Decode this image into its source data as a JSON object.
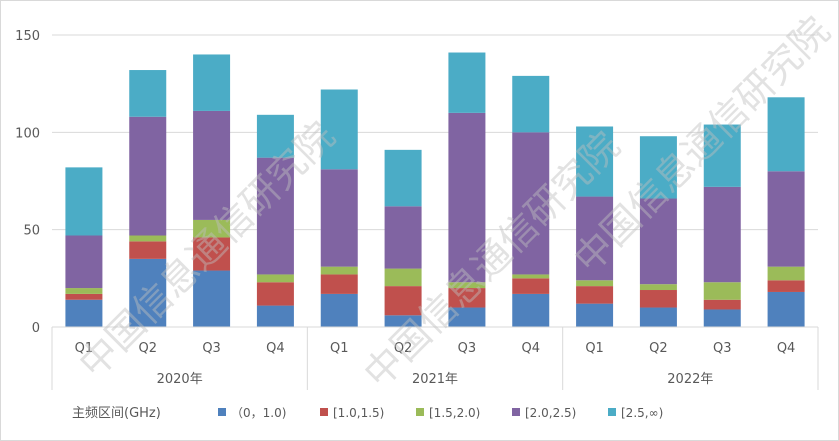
{
  "chart_data": {
    "type": "bar",
    "stacked": true,
    "categories": [
      "Q1",
      "Q2",
      "Q3",
      "Q4",
      "Q1",
      "Q2",
      "Q3",
      "Q4",
      "Q1",
      "Q2",
      "Q3",
      "Q4"
    ],
    "groups": [
      {
        "label": "2020年",
        "start": 0,
        "end": 3
      },
      {
        "label": "2021年",
        "start": 4,
        "end": 7
      },
      {
        "label": "2022年",
        "start": 8,
        "end": 11
      }
    ],
    "series": [
      {
        "name": "（0，1.0)",
        "color": "#4f81bd",
        "values": [
          14,
          35,
          29,
          11,
          17,
          6,
          10,
          17,
          12,
          10,
          9,
          18
        ]
      },
      {
        "name": "[1.0,1.5)",
        "color": "#c0504d",
        "values": [
          3,
          9,
          17,
          12,
          10,
          15,
          10,
          8,
          9,
          9,
          5,
          6
        ]
      },
      {
        "name": "[1.5,2.0)",
        "color": "#9bbb59",
        "values": [
          3,
          3,
          9,
          4,
          4,
          9,
          3,
          2,
          3,
          3,
          9,
          7
        ]
      },
      {
        "name": "[2.0,2.5)",
        "color": "#8064a2",
        "values": [
          27,
          61,
          56,
          60,
          50,
          32,
          87,
          73,
          43,
          44,
          49,
          49
        ]
      },
      {
        "name": "[2.5,∞)",
        "color": "#4bacc6",
        "values": [
          35,
          24,
          29,
          22,
          41,
          29,
          31,
          29,
          36,
          32,
          32,
          38
        ]
      }
    ],
    "yticks": [
      0,
      50,
      100,
      150
    ],
    "ylim": [
      0,
      150
    ],
    "legend_title": "主频区间(GHz)",
    "legend_position": "bottom",
    "grid": true
  },
  "watermark": "中国信息通信研究院"
}
